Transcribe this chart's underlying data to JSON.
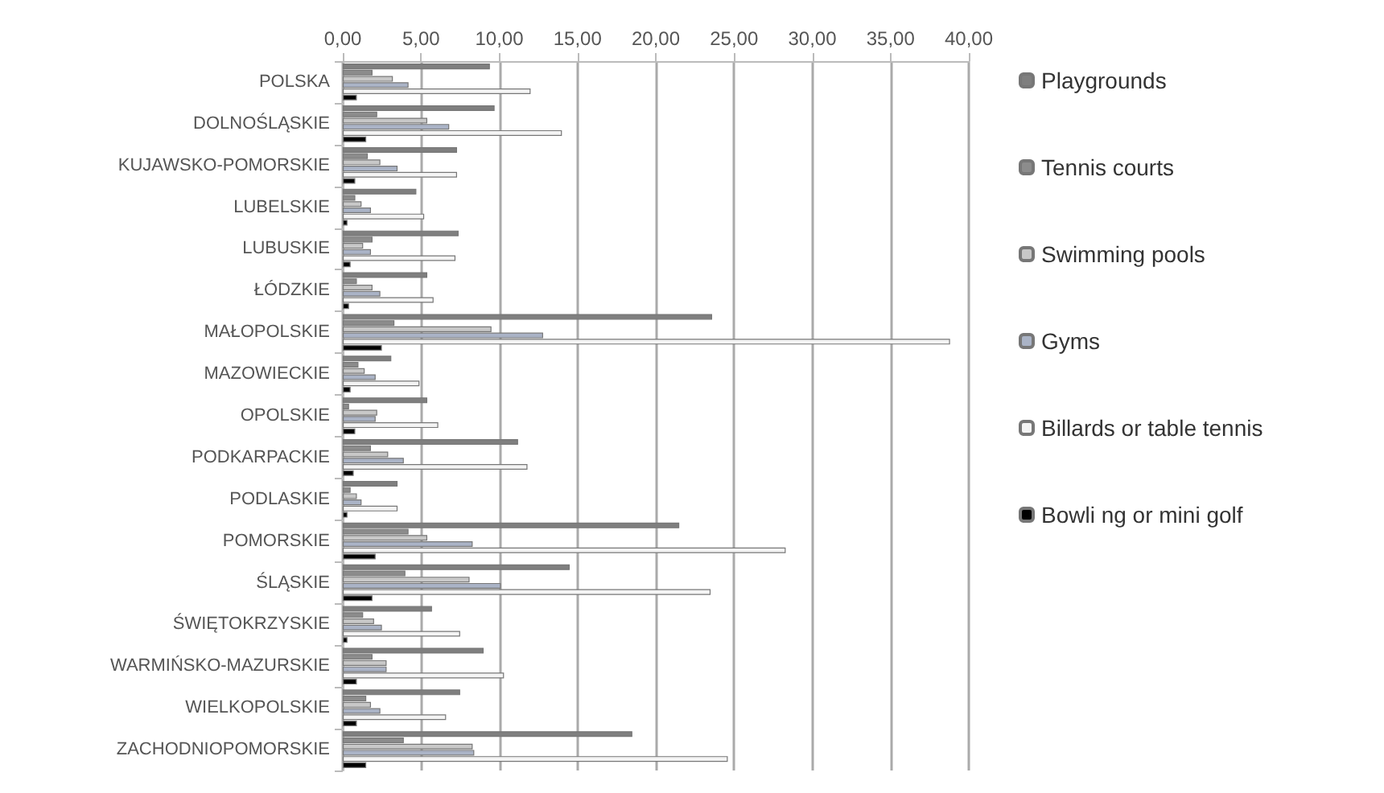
{
  "chart_data": {
    "type": "bar",
    "orientation": "horizontal",
    "categories": [
      "POLSKA",
      "DOLNOŚLĄSKIE",
      "KUJAWSKO-POMORSKIE",
      "LUBELSKIE",
      "LUBUSKIE",
      "ŁÓDZKIE",
      "MAŁOPOLSKIE",
      "MAZOWIECKIE",
      "OPOLSKIE",
      "PODKARPACKIE",
      "PODLASKIE",
      "POMORSKIE",
      "ŚLĄSKIE",
      "ŚWIĘTOKRZYSKIE",
      "WARMIŃSKO-MAZURSKIE",
      "WIELKOPOLSKIE",
      "ZACHODNIOPOMORSKIE"
    ],
    "series": [
      {
        "name": "Playgrounds",
        "color": "#7f7f7f",
        "values": [
          9.4,
          9.7,
          7.3,
          4.7,
          7.4,
          5.4,
          23.6,
          3.1,
          5.4,
          11.2,
          3.5,
          21.5,
          14.5,
          5.7,
          9.0,
          7.5,
          18.5
        ]
      },
      {
        "name": "Tennis courts",
        "color": "#8c8c8c",
        "values": [
          1.9,
          2.2,
          1.6,
          0.8,
          1.9,
          0.9,
          3.3,
          1.0,
          0.4,
          1.8,
          0.5,
          4.2,
          4.0,
          1.3,
          1.9,
          1.5,
          3.9
        ]
      },
      {
        "name": "Swimming pools",
        "color": "#c8c8c8",
        "values": [
          3.2,
          5.4,
          2.4,
          1.2,
          1.3,
          1.9,
          9.5,
          1.4,
          2.2,
          2.9,
          0.9,
          5.4,
          8.1,
          2.0,
          2.8,
          1.8,
          8.3
        ]
      },
      {
        "name": "Gyms",
        "color": "#aab3c6",
        "values": [
          4.2,
          6.8,
          3.5,
          1.8,
          1.8,
          2.4,
          12.8,
          2.1,
          2.1,
          3.9,
          1.2,
          8.3,
          10.1,
          2.5,
          2.8,
          2.4,
          8.4
        ]
      },
      {
        "name": "Billards or table tennis",
        "color": "#f4f4f4",
        "values": [
          12.0,
          14.0,
          7.3,
          5.2,
          7.2,
          5.8,
          38.8,
          4.9,
          6.1,
          11.8,
          3.5,
          28.3,
          23.5,
          7.5,
          10.3,
          6.6,
          24.6
        ]
      },
      {
        "name": "Bowli ng or mini golf",
        "color": "#000000",
        "values": [
          0.9,
          1.5,
          0.8,
          0.3,
          0.5,
          0.4,
          2.5,
          0.5,
          0.8,
          0.7,
          0.3,
          2.1,
          1.9,
          0.3,
          0.9,
          0.9,
          1.5
        ]
      }
    ],
    "xlim": [
      0,
      40
    ],
    "xticks": [
      {
        "value": 0,
        "label": "0,00"
      },
      {
        "value": 5,
        "label": "5,00"
      },
      {
        "value": 10,
        "label": "10,00"
      },
      {
        "value": 15,
        "label": "15,00"
      },
      {
        "value": 20,
        "label": "20,00"
      },
      {
        "value": 25,
        "label": "25,00"
      },
      {
        "value": 30,
        "label": "30,00"
      },
      {
        "value": 35,
        "label": "35,00"
      },
      {
        "value": 40,
        "label": "40,00"
      }
    ],
    "grid": "x",
    "legend": "right"
  }
}
